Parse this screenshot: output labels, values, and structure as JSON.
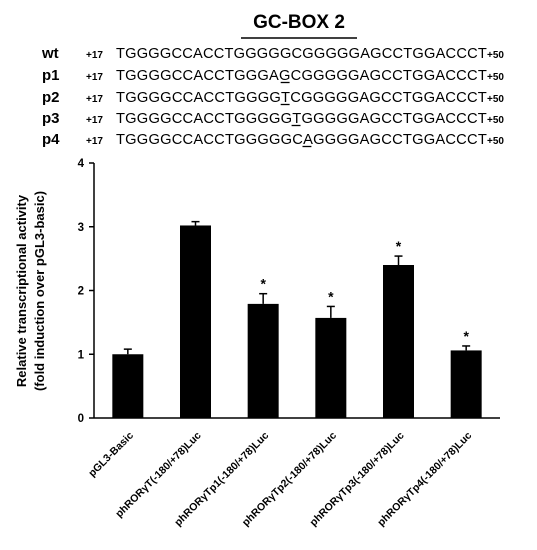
{
  "figure": {
    "box_title": "GC-BOX 2",
    "sequences": [
      {
        "label": "wt",
        "start": "+17",
        "seq": "TGGGGCCACCTGGGGGCGGGGGAGCCTGGACCCT",
        "end": "+50",
        "underline": []
      },
      {
        "label": "p1",
        "start": "+17",
        "seq": "TGGGGCCACCTGGGAGCGGGGGAGCCTGGACCCT",
        "end": "+50",
        "underline": [
          15
        ]
      },
      {
        "label": "p2",
        "start": "+17",
        "seq": "TGGGGCCACCTGGGGTCGGGGGAGCCTGGACCCT",
        "end": "+50",
        "underline": [
          15
        ]
      },
      {
        "label": "p3",
        "start": "+17",
        "seq": "TGGGGCCACCTGGGGGTGGGGGAGCCTGGACCCT",
        "end": "+50",
        "underline": [
          16
        ]
      },
      {
        "label": "p4",
        "start": "+17",
        "seq": "TGGGGCCACCTGGGGGCAGGGGAGCCTGGACCCT",
        "end": "+50",
        "underline": [
          17
        ]
      }
    ]
  },
  "chart_data": {
    "type": "bar",
    "categories": [
      "pGL3-Basic",
      "phRORγT(-180/+78)Luc",
      "phRORγTp1(-180/+78)Luc",
      "phRORγTp2(-180/+78)Luc",
      "phRORγTp3(-180/+78)Luc",
      "phRORγTp4(-180/+78)Luc"
    ],
    "values": [
      1.0,
      3.02,
      1.79,
      1.57,
      2.4,
      1.06
    ],
    "errors": [
      0.08,
      0.06,
      0.16,
      0.18,
      0.14,
      0.07
    ],
    "significant": [
      false,
      false,
      true,
      true,
      true,
      true
    ],
    "significance_marker": "*",
    "ylabel_line1": "Relative transcriptional activity",
    "ylabel_line2": "(fold induction over pGL3-basic)",
    "ylim": [
      0,
      4
    ],
    "yticks": [
      "0",
      "1",
      "2",
      "3",
      "4"
    ],
    "bar_color": "#000000",
    "grid": false
  }
}
